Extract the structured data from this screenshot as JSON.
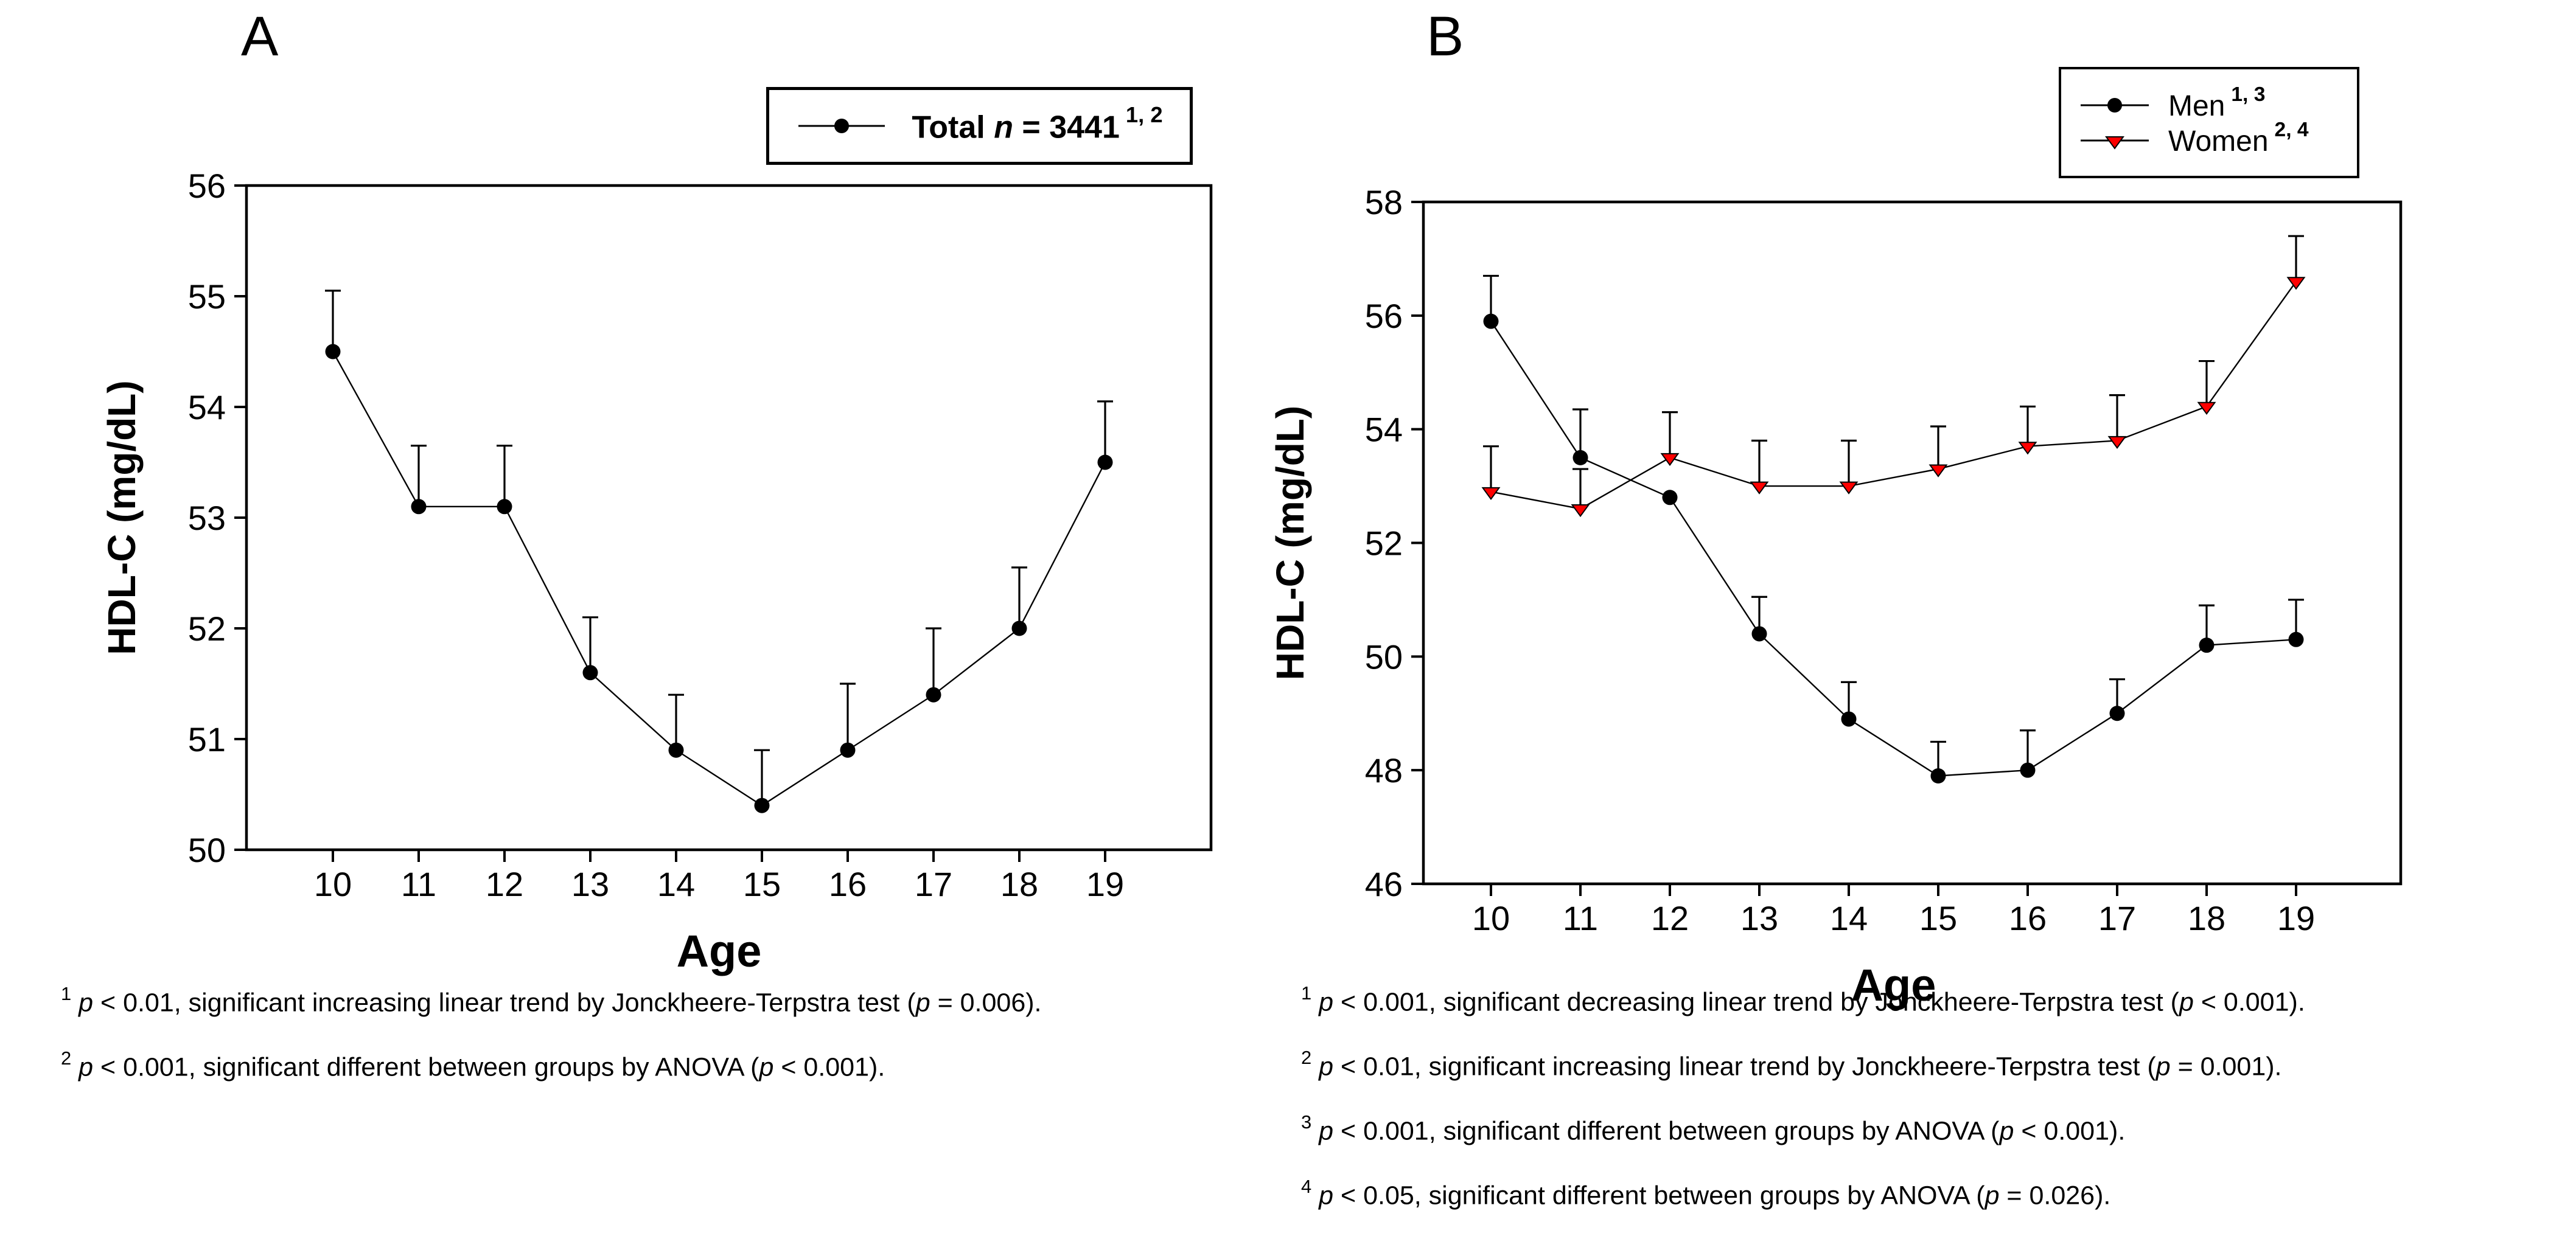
{
  "figure": {
    "background": "#ffffff",
    "text_color": "#000000",
    "accent_red": "#fe0000"
  },
  "panels": [
    {
      "label": "A",
      "legend": {
        "entries": [
          {
            "marker": "circle",
            "color": "#000000",
            "bold": true,
            "label_parts": [
              {
                "style": "normal",
                "text": "Total "
              },
              {
                "style": "italic",
                "text": "n"
              },
              {
                "style": "normal",
                "text": " = 3441"
              }
            ],
            "superscript": "1, 2"
          }
        ]
      },
      "footnotes": [
        {
          "sup": "1",
          "parts": [
            {
              "style": "italic",
              "text": "p"
            },
            {
              "style": "normal",
              "text": " < 0.01, significant increasing linear trend by Jonckheere-Terpstra test ("
            },
            {
              "style": "italic",
              "text": "p"
            },
            {
              "style": "normal",
              "text": " = 0.006)."
            }
          ]
        },
        {
          "sup": "2",
          "parts": [
            {
              "style": "italic",
              "text": "p"
            },
            {
              "style": "normal",
              "text": " < 0.001, significant different between groups by ANOVA ("
            },
            {
              "style": "italic",
              "text": "p"
            },
            {
              "style": "normal",
              "text": " < 0.001)."
            }
          ]
        }
      ]
    },
    {
      "label": "B",
      "legend": {
        "entries": [
          {
            "marker": "circle",
            "color": "#000000",
            "bold": false,
            "label_parts": [
              {
                "style": "normal",
                "text": "Men"
              }
            ],
            "superscript": "1, 3"
          },
          {
            "marker": "triangle-down",
            "color": "#fe0000",
            "bold": false,
            "label_parts": [
              {
                "style": "normal",
                "text": "Women"
              }
            ],
            "superscript": "2, 4"
          }
        ]
      },
      "footnotes": [
        {
          "sup": "1",
          "parts": [
            {
              "style": "italic",
              "text": "p"
            },
            {
              "style": "normal",
              "text": " < 0.001, significant decreasing linear trend by Jonckheere-Terpstra test ("
            },
            {
              "style": "italic",
              "text": "p"
            },
            {
              "style": "normal",
              "text": " < 0.001)."
            }
          ]
        },
        {
          "sup": "2",
          "parts": [
            {
              "style": "italic",
              "text": "p"
            },
            {
              "style": "normal",
              "text": " < 0.01, significant increasing linear trend by Jonckheere-Terpstra test ("
            },
            {
              "style": "italic",
              "text": "p"
            },
            {
              "style": "normal",
              "text": " = 0.001)."
            }
          ]
        },
        {
          "sup": "3",
          "parts": [
            {
              "style": "italic",
              "text": "p"
            },
            {
              "style": "normal",
              "text": " < 0.001, significant different between groups by ANOVA ("
            },
            {
              "style": "italic",
              "text": "p"
            },
            {
              "style": "normal",
              "text": " < 0.001)."
            }
          ]
        },
        {
          "sup": "4",
          "parts": [
            {
              "style": "italic",
              "text": "p"
            },
            {
              "style": "normal",
              "text": " < 0.05, significant different between groups by ANOVA ("
            },
            {
              "style": "italic",
              "text": "p"
            },
            {
              "style": "normal",
              "text": " = 0.026)."
            }
          ]
        }
      ]
    }
  ],
  "chart_data": [
    {
      "type": "line",
      "panel": "A",
      "title": "",
      "xlabel": "Age",
      "ylabel": "HDL-C (mg/dL)",
      "x": [
        10,
        11,
        12,
        13,
        14,
        15,
        16,
        17,
        18,
        19
      ],
      "xlim": [
        9.0,
        20.25
      ],
      "ylim": [
        50,
        56
      ],
      "yticks": [
        50,
        51,
        52,
        53,
        54,
        55,
        56
      ],
      "grid": false,
      "legend_position": "above-top-right",
      "series": [
        {
          "name": "Total n = 3441",
          "superscript": "1, 2",
          "marker": "circle",
          "color": "#000000",
          "values": [
            54.5,
            53.1,
            53.1,
            51.6,
            50.9,
            50.4,
            50.9,
            51.4,
            52.0,
            53.5
          ],
          "error_upper": [
            0.55,
            0.55,
            0.55,
            0.5,
            0.5,
            0.5,
            0.6,
            0.6,
            0.55,
            0.55
          ]
        }
      ]
    },
    {
      "type": "line",
      "panel": "B",
      "title": "",
      "xlabel": "Age",
      "ylabel": "HDL-C (mg/dL)",
      "x": [
        10,
        11,
        12,
        13,
        14,
        15,
        16,
        17,
        18,
        19
      ],
      "xlim": [
        9.0,
        20.25
      ],
      "ylim": [
        46,
        58
      ],
      "yticks": [
        46,
        48,
        50,
        52,
        54,
        56,
        58
      ],
      "grid": false,
      "legend_position": "above-top-right",
      "series": [
        {
          "name": "Men",
          "superscript": "1, 3",
          "marker": "circle",
          "color": "#000000",
          "values": [
            55.9,
            53.5,
            52.8,
            50.4,
            48.9,
            47.9,
            48.0,
            49.0,
            50.2,
            50.3
          ],
          "error_upper": [
            0.8,
            0.85,
            null,
            0.65,
            0.65,
            0.6,
            0.7,
            0.6,
            0.7,
            0.7
          ]
        },
        {
          "name": "Women",
          "superscript": "2, 4",
          "marker": "triangle-down",
          "color": "#fe0000",
          "marker_outline": "#000000",
          "values": [
            52.9,
            52.6,
            53.5,
            53.0,
            53.0,
            53.3,
            53.7,
            53.8,
            54.4,
            56.6
          ],
          "error_upper": [
            0.8,
            0.7,
            0.8,
            0.8,
            0.8,
            0.75,
            0.7,
            0.8,
            0.8,
            0.8
          ]
        }
      ]
    }
  ]
}
